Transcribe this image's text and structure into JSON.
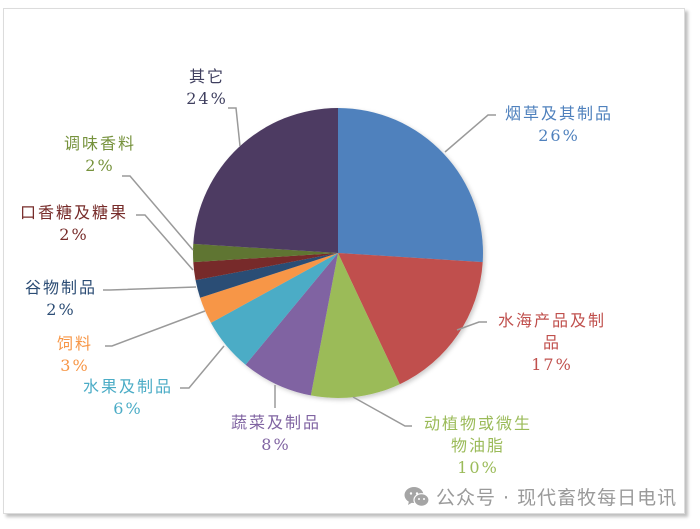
{
  "chart_data": {
    "type": "pie",
    "title": "",
    "categories": [
      "烟草及其制品",
      "水海产品及制品",
      "动植物或微生物油脂",
      "蔬菜及制品",
      "水果及制品",
      "饲料",
      "谷物制品",
      "口香糖及糖果",
      "调味香料",
      "其它"
    ],
    "values": [
      26,
      17,
      10,
      8,
      6,
      3,
      2,
      2,
      2,
      24
    ],
    "colors": [
      "#4f81bd",
      "#c0504d",
      "#9bbb59",
      "#8064a2",
      "#4bacc6",
      "#f79646",
      "#2c4d75",
      "#772c2a",
      "#5f7530",
      "#4e3b62"
    ],
    "start_angle_deg": 0,
    "direction": "clockwise",
    "legend": "none (data labels with leader lines)",
    "labels": [
      {
        "name": "烟草及其制品",
        "pct": "26%"
      },
      {
        "name": "水海产品及制品",
        "pct": "17%"
      },
      {
        "name": "动植物或微生物油脂",
        "pct": "10%"
      },
      {
        "name": "蔬菜及制品",
        "pct": "8%"
      },
      {
        "name": "水果及制品",
        "pct": "6%"
      },
      {
        "name": "饲料",
        "pct": "3%"
      },
      {
        "name": "谷物制品",
        "pct": "2%"
      },
      {
        "name": "口香糖及糖果",
        "pct": "2%"
      },
      {
        "name": "调味香料",
        "pct": "2%"
      },
      {
        "name": "其它",
        "pct": "24%"
      }
    ]
  },
  "label_text": {
    "tobacco": {
      "line1": "烟草及其制品",
      "pct": "26%"
    },
    "seafood": {
      "line1": "水海产品及制",
      "line2": "品",
      "pct": "17%"
    },
    "oils": {
      "line1": "动植物或微生",
      "line2": "物油脂",
      "pct": "10%"
    },
    "vegetables": {
      "line1": "蔬菜及制品",
      "pct": "8%"
    },
    "fruits": {
      "line1": "水果及制品",
      "pct": "6%"
    },
    "feed": {
      "line1": "饲料",
      "pct": "3%"
    },
    "cereals": {
      "line1": "谷物制品",
      "pct": "2%"
    },
    "candy": {
      "line1": "口香糖及糖果",
      "pct": "2%"
    },
    "spices": {
      "line1": "调味香料",
      "pct": "2%"
    },
    "other": {
      "line1": "其它",
      "pct": "24%"
    }
  },
  "watermark": {
    "text": "公众号 · 现代畜牧每日电讯",
    "icon": "wechat-icon"
  }
}
